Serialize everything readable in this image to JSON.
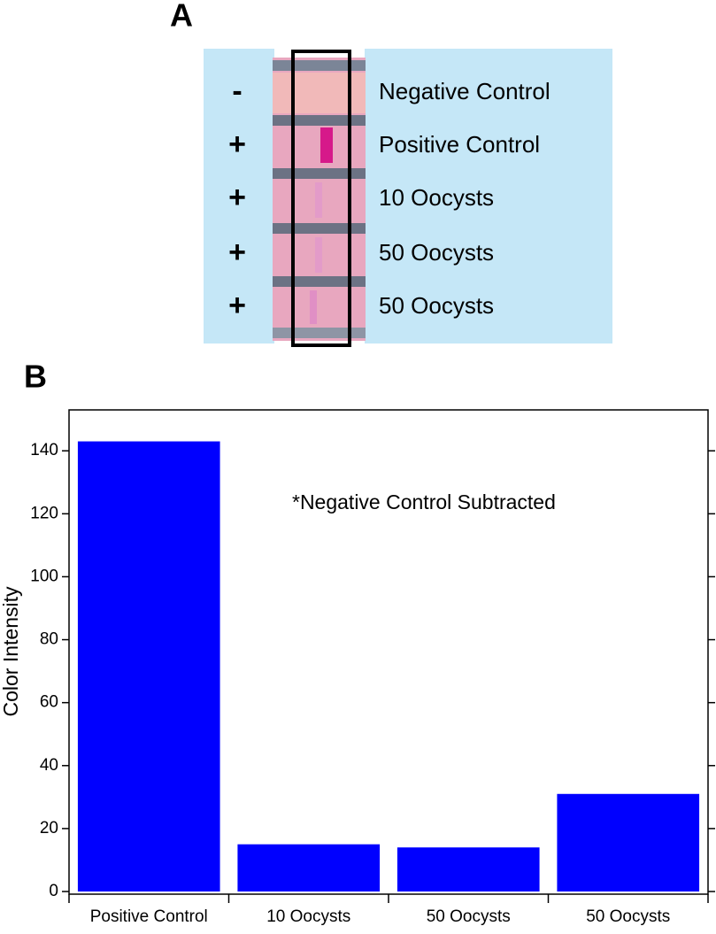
{
  "panel_a": {
    "label": "A",
    "rows": [
      {
        "sign": "-",
        "label": "Negative Control"
      },
      {
        "sign": "+",
        "label": "Positive Control"
      },
      {
        "sign": "+",
        "label": "10 Oocysts"
      },
      {
        "sign": "+",
        "label": "50 Oocysts"
      },
      {
        "sign": "+",
        "label": "50 Oocysts"
      }
    ]
  },
  "panel_b_label": "B",
  "chart_data": {
    "type": "bar",
    "y_label": "Color Intensity",
    "annotation": "*Negative Control Subtracted",
    "categories": [
      "Positive Control",
      "10 Oocysts",
      "50 Oocysts",
      "50 Oocysts"
    ],
    "values": [
      143,
      15,
      14,
      31
    ],
    "color": "#0000ff",
    "ylim": [
      0,
      153
    ],
    "yticks": [
      0,
      20,
      40,
      60,
      80,
      100,
      120,
      140
    ],
    "grid": false
  }
}
